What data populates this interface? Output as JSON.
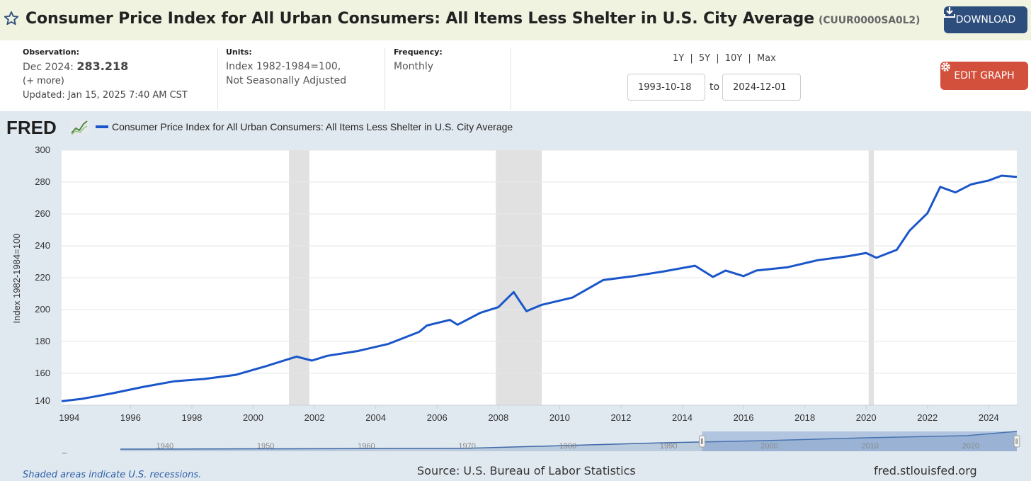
{
  "header": {
    "title": "Consumer Price Index for All Urban Consumers: All Items Less Shelter in U.S. City Average",
    "series_id": "(CUUR0000SA0L2)",
    "download_label": "DOWNLOAD"
  },
  "meta": {
    "observation_label": "Observation:",
    "observation_period": "Dec 2024:",
    "observation_value": "283.218",
    "more": "(+ more)",
    "updated": "Updated: Jan 15, 2025 7:40 AM CST",
    "units_label": "Units:",
    "units_line1": "Index 1982-1984=100,",
    "units_line2": "Not Seasonally Adjusted",
    "frequency_label": "Frequency:",
    "frequency_value": "Monthly"
  },
  "controls": {
    "range_1y": "1Y",
    "range_5y": "5Y",
    "range_10y": "10Y",
    "range_max": "Max",
    "sep": "|",
    "start_date": "1993-10-18",
    "to_label": "to",
    "end_date": "2024-12-01",
    "edit_label": "EDIT GRAPH"
  },
  "graph": {
    "logo": "FRED",
    "footer_note": "Shaded areas indicate U.S. recessions.",
    "source": "Source: U.S. Bureau of Labor Statistics",
    "site": "fred.stlouisfed.org",
    "navigator_ticks": [
      "1940",
      "1950",
      "1960",
      "1970",
      "1980",
      "1990",
      "2000",
      "2010",
      "2020"
    ]
  },
  "colors": {
    "line": "#1a56c9",
    "recession": "#e1e1e1",
    "grid": "#e6e6e6"
  },
  "chart_data": {
    "type": "line",
    "title": "",
    "legend": [
      "Consumer Price Index for All Urban Consumers: All Items Less Shelter in U.S. City Average"
    ],
    "xlabel": "",
    "ylabel": "Index 1982-1984=100",
    "xlim": [
      "1993-10",
      "2024-12"
    ],
    "ylim": [
      140,
      300
    ],
    "yticks": [
      "140",
      "160",
      "180",
      "200",
      "220",
      "240",
      "260",
      "280",
      "300"
    ],
    "xticks": [
      "1994",
      "1996",
      "1998",
      "2000",
      "2002",
      "2004",
      "2006",
      "2008",
      "2010",
      "2012",
      "2014",
      "2016",
      "2018",
      "2020",
      "2022",
      "2024"
    ],
    "recessions": [
      [
        "2001-03",
        "2001-11"
      ],
      [
        "2007-12",
        "2009-06"
      ],
      [
        "2020-02",
        "2020-04"
      ]
    ],
    "series": [
      {
        "name": "Consumer Price Index for All Urban Consumers: All Items Less Shelter in U.S. City Average",
        "x": [
          "1993-10",
          "1994-06",
          "1995-06",
          "1996-06",
          "1997-06",
          "1998-06",
          "1999-06",
          "2000-06",
          "2001-06",
          "2001-12",
          "2002-06",
          "2003-06",
          "2004-06",
          "2005-06",
          "2005-09",
          "2006-06",
          "2006-09",
          "2007-06",
          "2008-01",
          "2008-07",
          "2008-12",
          "2009-06",
          "2010-06",
          "2011-06",
          "2012-06",
          "2013-06",
          "2014-06",
          "2015-01",
          "2015-06",
          "2016-01",
          "2016-06",
          "2017-06",
          "2018-06",
          "2019-06",
          "2020-01",
          "2020-05",
          "2021-01",
          "2021-06",
          "2022-01",
          "2022-06",
          "2022-12",
          "2023-06",
          "2024-01",
          "2024-06",
          "2024-12"
        ],
        "values": [
          142.5,
          144.0,
          147.5,
          151.5,
          155.0,
          156.5,
          159.0,
          164.5,
          170.5,
          168.0,
          171.0,
          174.0,
          178.5,
          186.0,
          190.0,
          193.5,
          190.5,
          198.0,
          201.5,
          211.0,
          199.0,
          203.0,
          207.5,
          218.5,
          221.0,
          224.0,
          227.5,
          220.5,
          224.5,
          221.0,
          224.5,
          226.5,
          231.0,
          233.5,
          235.5,
          232.5,
          237.5,
          249.5,
          260.5,
          277.0,
          273.5,
          278.5,
          281.0,
          284.0,
          283.2
        ]
      }
    ]
  }
}
